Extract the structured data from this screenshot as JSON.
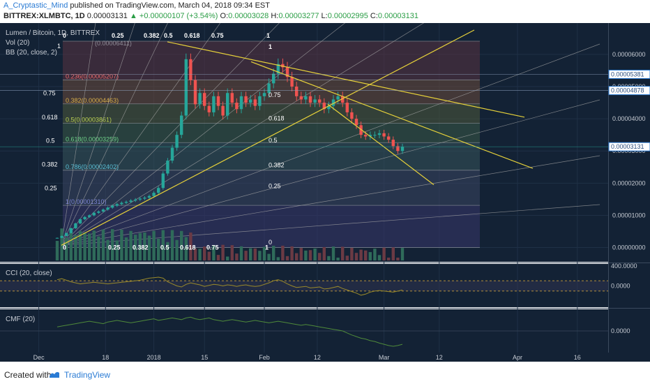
{
  "header": {
    "author": "A_Cryptastic_Mind",
    "published_text": "published on TradingView.com, March 04, 2018 09:34 EST",
    "symbol_line": "BITTREX:XLMBTC, 1D",
    "last": "0.00003131",
    "change": "▲ +0.00000107 (+3.54%)",
    "open_label": "O:",
    "open": "0.00003028",
    "high_label": "H:",
    "high": "0.00003277",
    "low_label": "L:",
    "low": "0.00002995",
    "close_label": "C:",
    "close": "0.00003131"
  },
  "legend": {
    "title": "Lumen / Bitcoin, 1D, BITTREX",
    "vol": "Vol (20)",
    "bb": "BB (20, close, 2)",
    "cci": "CCI (20, close)",
    "cmf": "CMF (20)"
  },
  "colors": {
    "up": "#26a69a",
    "down": "#ef5350",
    "trend": "#e6d13a",
    "fan": "#aaaaaa",
    "badge": "#2a7bd4"
  },
  "chart_data": [
    {
      "type": "line",
      "title": "Lumen / Bitcoin, 1D, BITTREX",
      "x_tick_labels": [
        "Dec",
        "18",
        "2018",
        "15",
        "Feb",
        "12",
        "Mar",
        "12",
        "Apr",
        "16"
      ],
      "y_tick_labels": [
        "0.00006000",
        "0.00005000",
        "0.00004000",
        "0.00003000",
        "0.00002000",
        "0.00001000",
        "0.00000000"
      ],
      "ylim": [
        -4e-06,
        6.8e-05
      ],
      "price_badges": [
        "0.00005381",
        "0.00004878",
        "0.00003131"
      ],
      "series": [
        {
          "name": "",
          "values": [
            3e-06,
            3.6e-06,
            4.5e-06,
            6e-06,
            7.5e-06,
            8.8e-06,
            9.5e-06,
            1e-05,
            1.08e-05,
            1.12e-05,
            1.18e-05,
            1.24e-05,
            1.3e-05,
            1.35e-05,
            1.39e-05,
            1.42e-05,
            1.46e-05,
            1.49e-05,
            1.52e-05,
            1.55e-05,
            1.6e-05,
            1.7e-05,
            1.85e-05,
            2.3e-05,
            2.7e-05,
            3.1e-05,
            3.5e-05,
            4.1e-05,
            5.85e-05,
            5.2e-05,
            4.45e-05,
            4.8e-05,
            4.4e-05,
            4.2e-05,
            4.7e-05,
            4.4e-05,
            4.1e-05,
            4.8e-05,
            4.5e-05,
            4.3e-05,
            4.7e-05,
            4.5e-05,
            4.6e-05,
            4.4e-05,
            4.7e-05,
            4.8e-05,
            5.1e-05,
            5.4e-05,
            5.7e-05,
            5.6e-05,
            5.3e-05,
            5e-05,
            4.7e-05,
            4.6e-05,
            4.7e-05,
            4.5e-05,
            4.6e-05,
            4.5e-05,
            4.3e-05,
            4.4e-05,
            4.6e-05,
            4.7e-05,
            4.5e-05,
            4.2e-05,
            4e-05,
            3.8e-05,
            3.5e-05,
            3.45e-05,
            3.5e-05,
            3.5e-05,
            3.55e-05,
            3.45e-05,
            3.35e-05,
            3.15e-05,
            3e-05,
            3.13e-05
          ]
        }
      ],
      "fib_retracement": [
        {
          "level": "0.236",
          "value": "0.00005207",
          "label": "0.236(0.00005207)"
        },
        {
          "level": "0.382",
          "value": "0.00004463",
          "label": "0.382(0.00004463)"
        },
        {
          "level": "0.5",
          "value": "0.00003861",
          "label": "0.5(0.00003861)"
        },
        {
          "level": "0.618",
          "value": "0.00003259",
          "label": "0.618(0.00003259)"
        },
        {
          "level": "0.786",
          "value": "0.00002402",
          "label": "0.786(0.00002402)"
        },
        {
          "level": "1",
          "value": "0.00001310",
          "label": "1(0.00001310)"
        }
      ],
      "fib_top_partial": "(0.00006411)",
      "fan_top_labels": [
        "0",
        "0.25",
        "0.382",
        "0.5",
        "0.618",
        "0.75",
        "1"
      ],
      "fan_bottom_labels": [
        "0",
        "0.25",
        "0.382",
        "0.5",
        "0.618",
        "0.75",
        "1"
      ],
      "fan_left_labels": [
        "1",
        "0.75",
        "0.618",
        "0.5",
        "0.382",
        "0.25"
      ],
      "fan2_labels": [
        "1",
        "0.75",
        "0.618",
        "0.5",
        "0.382",
        "0.25",
        "0"
      ]
    },
    {
      "type": "line",
      "title": "CCI (20, close)",
      "y_tick_labels": [
        "400.0000",
        "0.0000"
      ],
      "ylim": [
        -400,
        400
      ],
      "values": [
        120,
        140,
        110,
        80,
        60,
        40,
        50,
        60,
        70,
        60,
        50,
        40,
        50,
        60,
        70,
        80,
        90,
        100,
        110,
        130,
        150,
        160,
        170,
        150,
        80,
        40,
        0,
        -20,
        30,
        60,
        40,
        20,
        -10,
        10,
        30,
        20,
        0,
        20,
        10,
        -10,
        10,
        20,
        0,
        -10,
        0,
        30,
        60,
        100,
        120,
        90,
        40,
        0,
        -30,
        -20,
        -10,
        -40,
        -30,
        -20,
        -60,
        -50,
        -30,
        -10,
        -50,
        -80,
        -110,
        -140,
        -180,
        -160,
        -120,
        -100,
        -90,
        -100,
        -110,
        -120,
        -100,
        -80
      ]
    },
    {
      "type": "line",
      "title": "CMF (20)",
      "y_tick_labels": [
        "0.0000"
      ],
      "ylim": [
        -0.5,
        0.5
      ],
      "values": [
        0.1,
        0.12,
        0.14,
        0.16,
        0.18,
        0.2,
        0.22,
        0.24,
        0.22,
        0.2,
        0.18,
        0.22,
        0.24,
        0.26,
        0.24,
        0.22,
        0.2,
        0.22,
        0.24,
        0.26,
        0.28,
        0.3,
        0.26,
        0.28,
        0.3,
        0.32,
        0.3,
        0.28,
        0.32,
        0.34,
        0.3,
        0.28,
        0.3,
        0.32,
        0.28,
        0.26,
        0.24,
        0.26,
        0.28,
        0.26,
        0.24,
        0.22,
        0.24,
        0.26,
        0.24,
        0.22,
        0.2,
        0.22,
        0.24,
        0.22,
        0.2,
        0.18,
        0.16,
        0.14,
        0.16,
        0.14,
        0.12,
        0.1,
        0.08,
        0.06,
        0.04,
        0.02,
        0.0,
        -0.05,
        -0.1,
        -0.14,
        -0.18,
        -0.2,
        -0.24,
        -0.26,
        -0.3,
        -0.33,
        -0.36,
        -0.38,
        -0.36,
        -0.33
      ]
    }
  ],
  "footer": {
    "created": "Created with",
    "brand": "TradingView"
  }
}
